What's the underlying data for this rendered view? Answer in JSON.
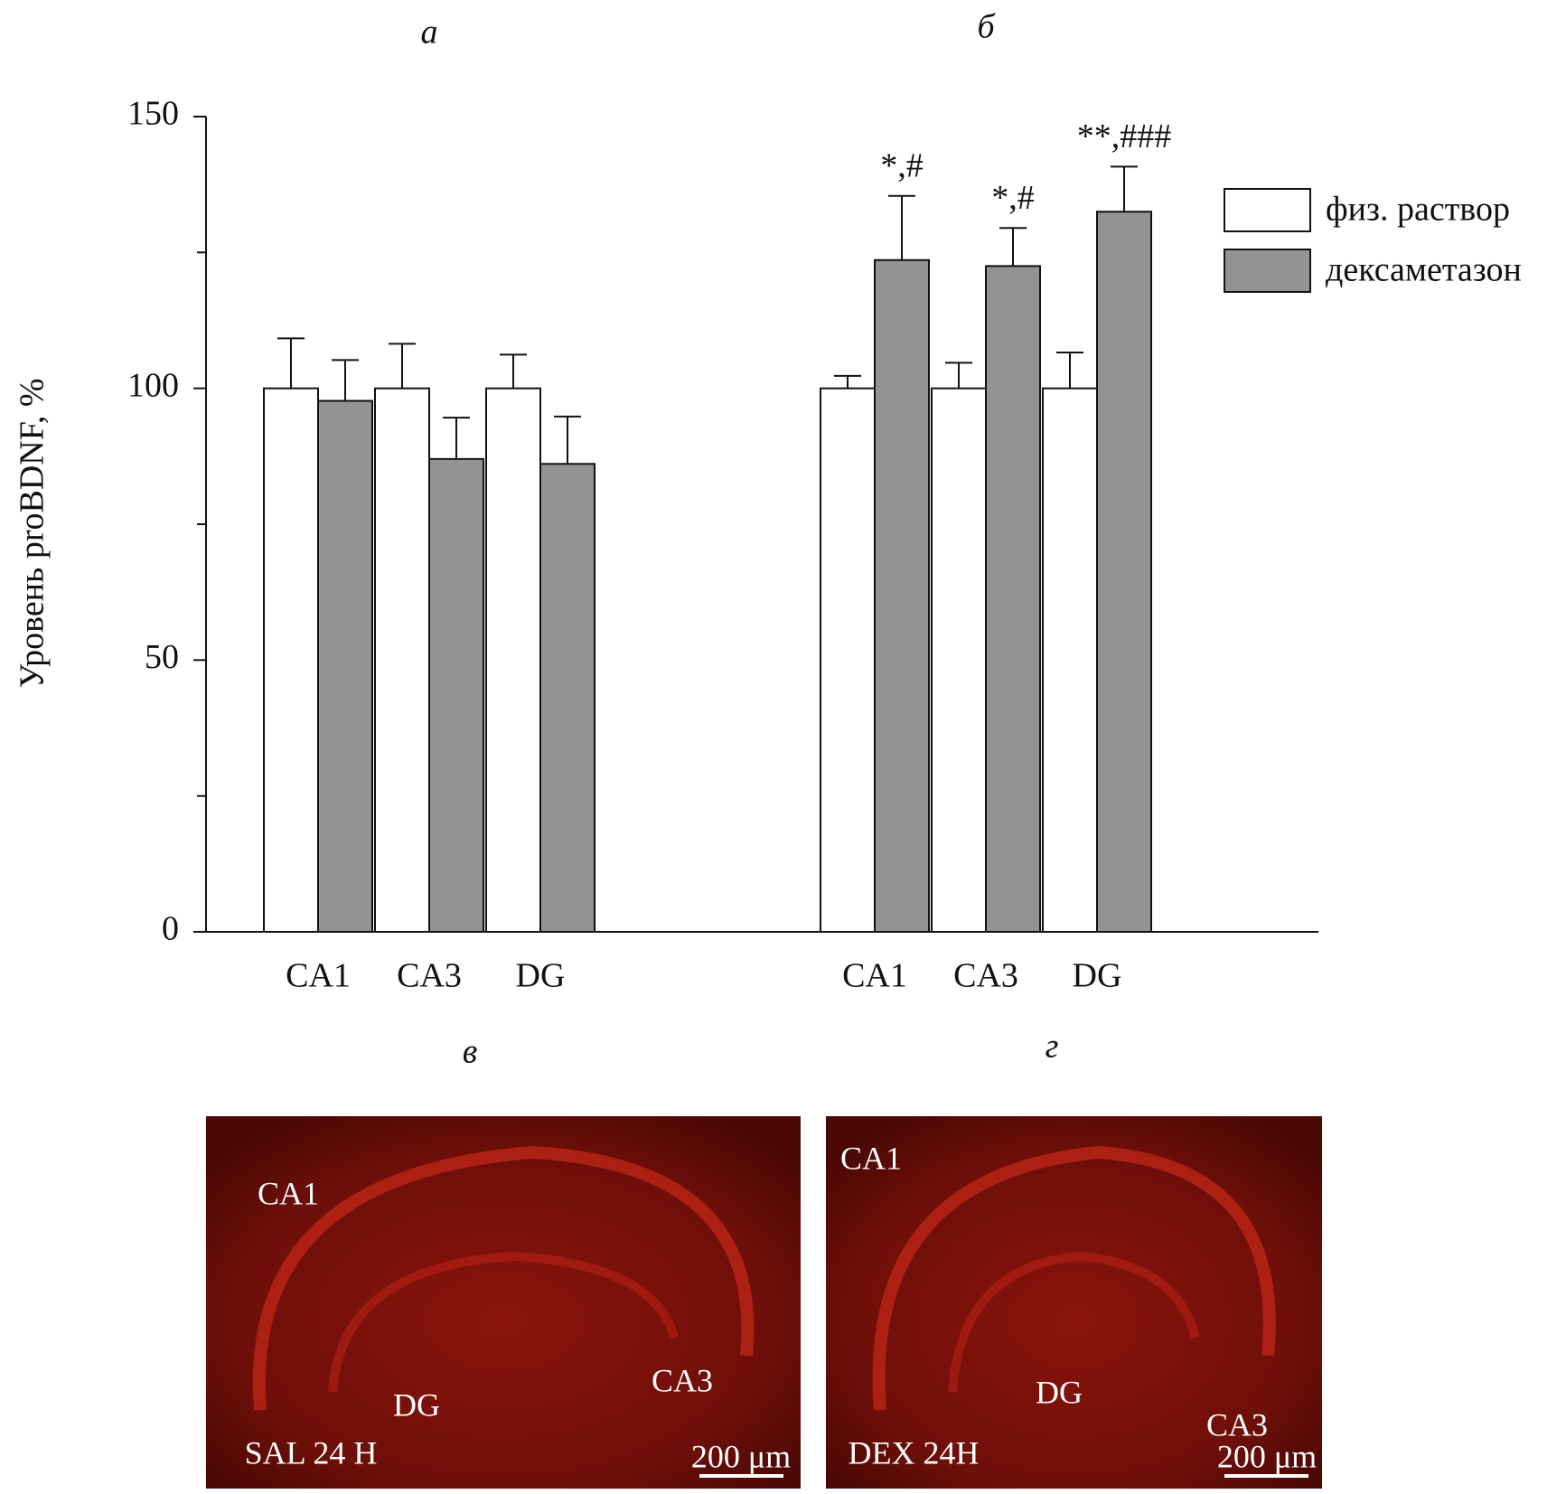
{
  "chart_data": {
    "type": "bar",
    "ylabel": "Уровень proBDNF, %",
    "ylim": [
      0,
      150
    ],
    "yticks": [
      0,
      50,
      100,
      150
    ],
    "minor_yticks": [
      25,
      75,
      125
    ],
    "legend": [
      {
        "name": "физ. раствор",
        "color": "#ffffff"
      },
      {
        "name": "дексаметазон",
        "color": "#939393"
      }
    ],
    "panels": [
      {
        "label": "а",
        "categories": [
          "CA1",
          "CA3",
          "DG"
        ],
        "series": [
          {
            "values": [
              100,
              100,
              100
            ],
            "errors": [
              9.2,
              8.2,
              6.2
            ]
          },
          {
            "values": [
              97.7,
              87.0,
              86.1
            ],
            "errors": [
              7.5,
              7.6,
              8.7
            ]
          }
        ]
      },
      {
        "label": "б",
        "categories": [
          "CA1",
          "CA3",
          "DG"
        ],
        "series": [
          {
            "values": [
              100,
              100,
              100
            ],
            "errors": [
              2.3,
              4.7,
              6.6
            ]
          },
          {
            "values": [
              123.6,
              122.5,
              132.5
            ],
            "errors": [
              11.8,
              7.0,
              8.3
            ],
            "annotations": [
              "*,#",
              "*,#",
              "**,###"
            ]
          }
        ]
      }
    ]
  },
  "images": [
    {
      "label": "в",
      "texts": [
        "CA1",
        "DG",
        "CA3"
      ],
      "caption": "SAL 24 H",
      "scale": "200 μm"
    },
    {
      "label": "г",
      "texts": [
        "CA1",
        "DG",
        "CA3"
      ],
      "caption": "DEX 24H",
      "scale": "200 μm"
    }
  ]
}
